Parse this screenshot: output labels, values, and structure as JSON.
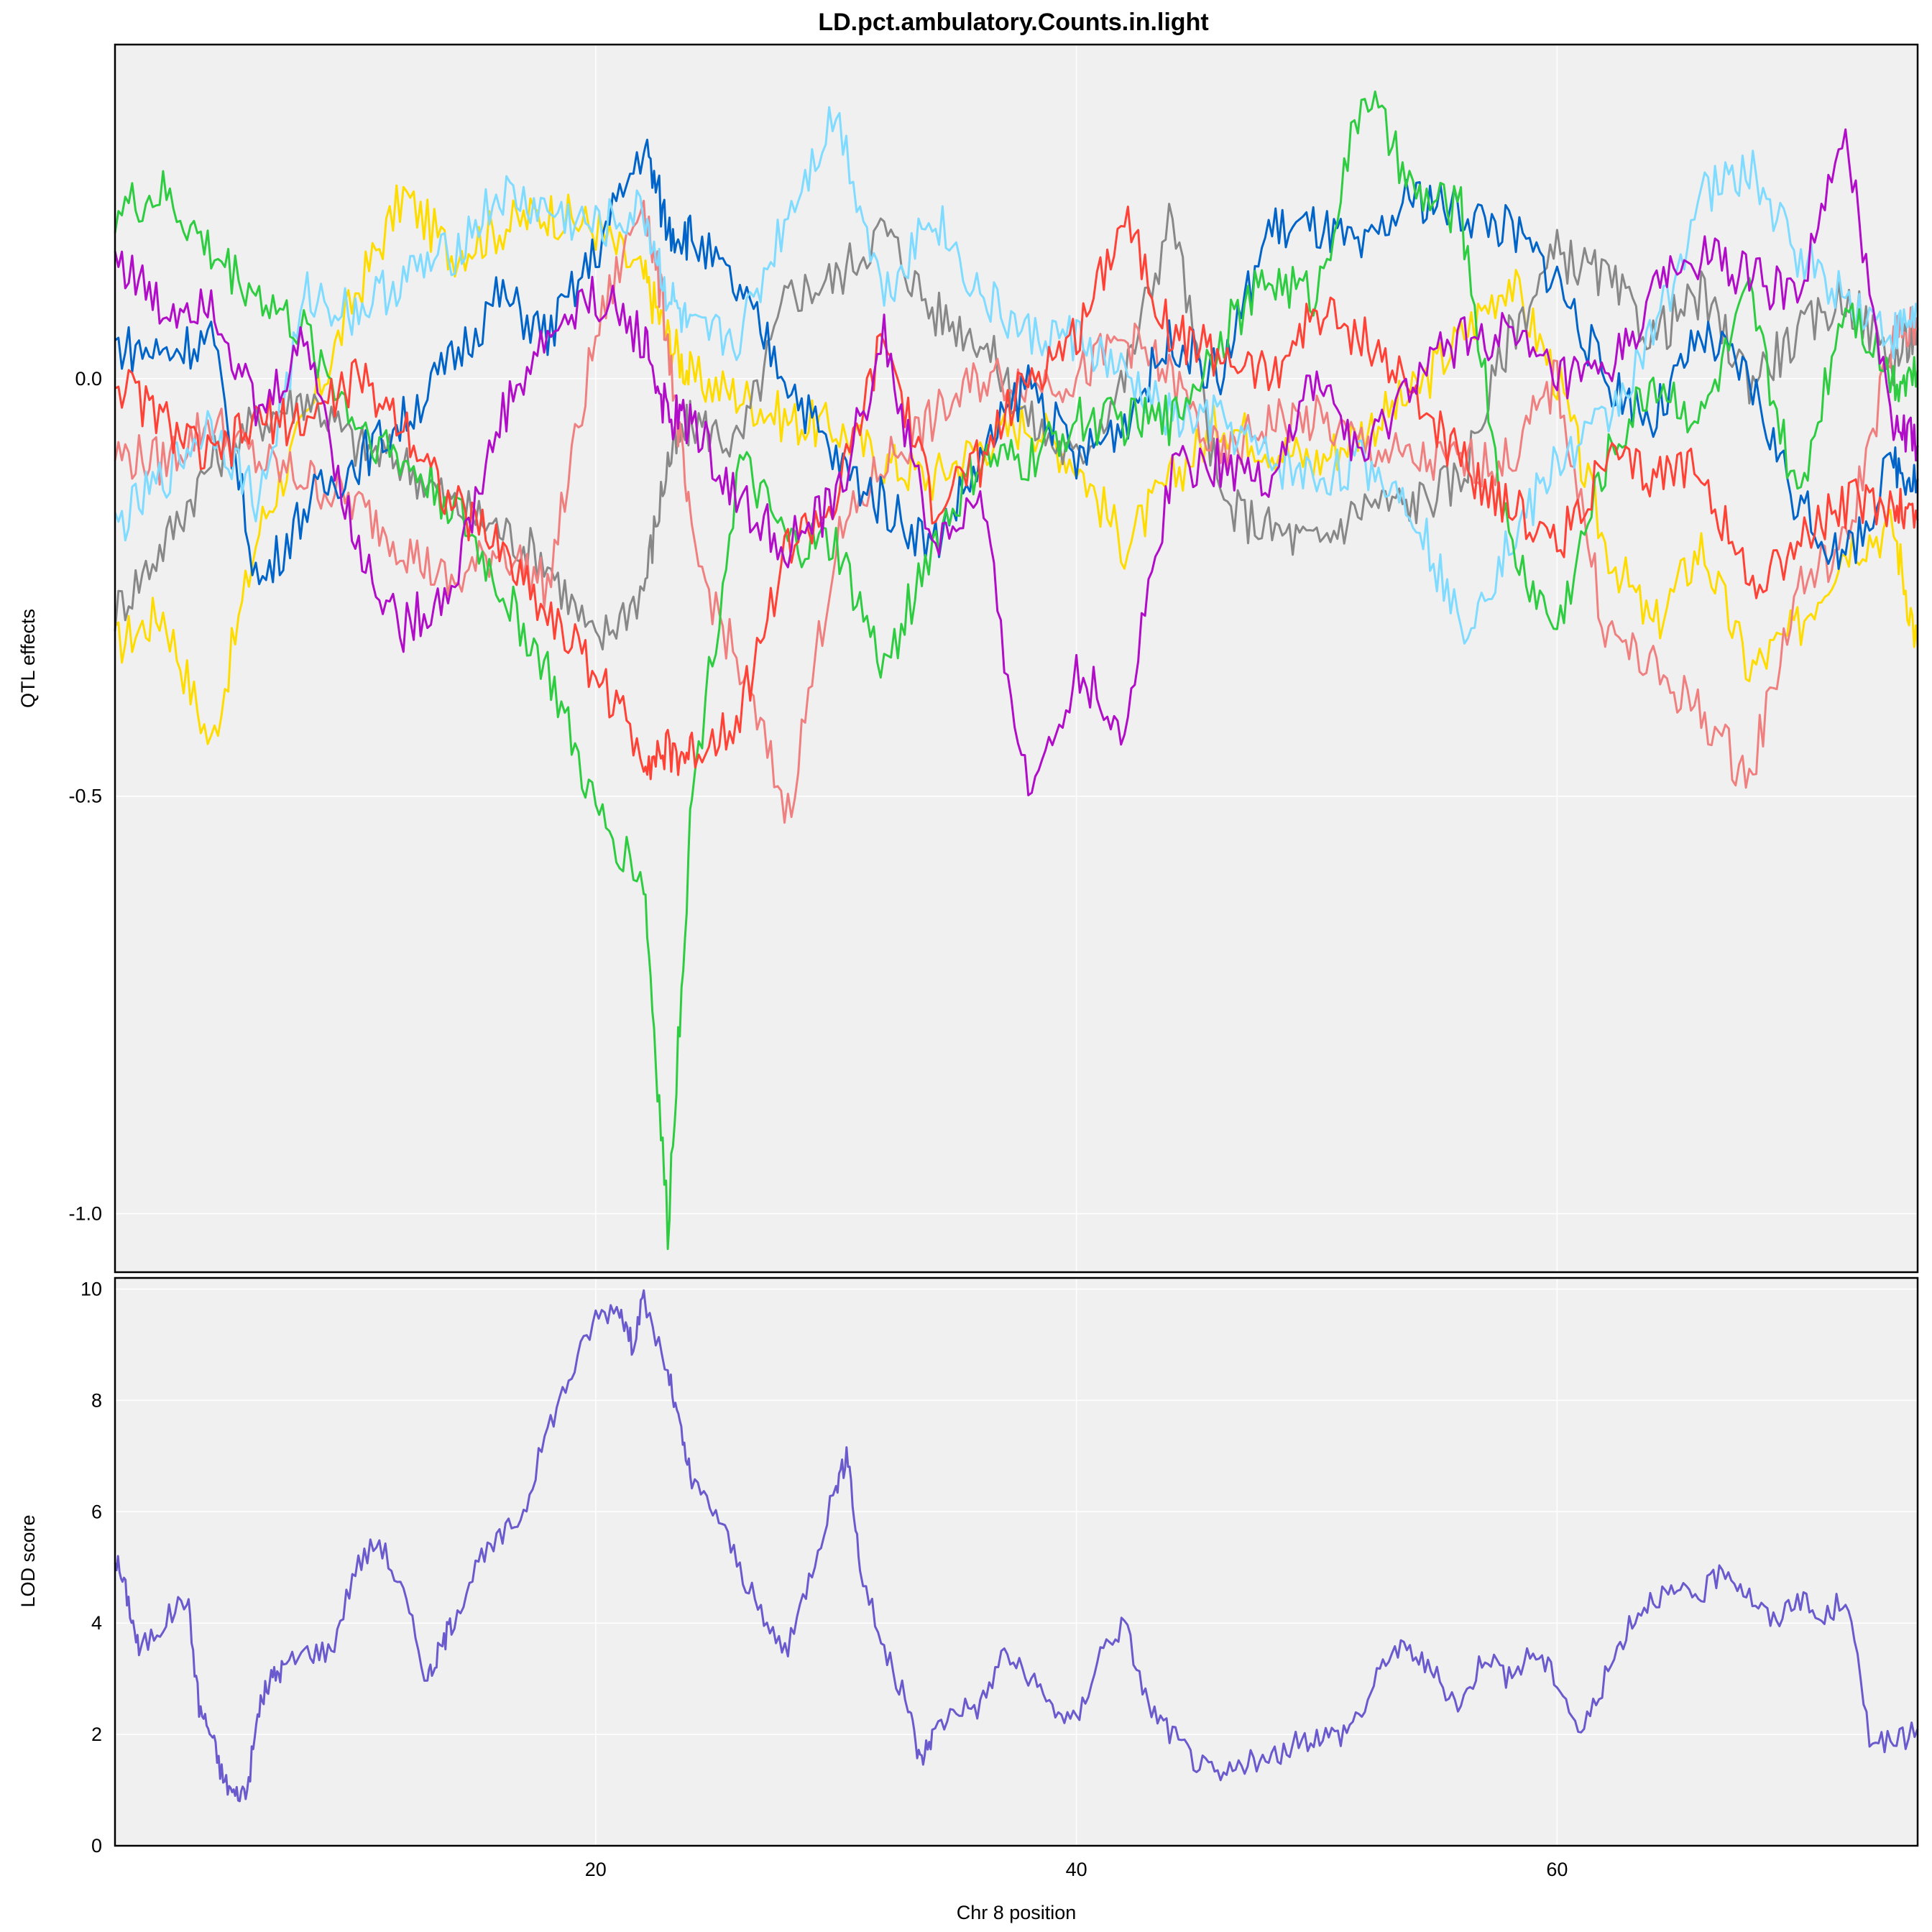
{
  "chart_data": [
    {
      "type": "line",
      "title": "LD.pct.ambulatory.Counts.in.light",
      "ylabel": "QTL effects",
      "xlim": [
        0,
        75
      ],
      "ylim": [
        -1.07,
        0.4
      ],
      "yticks": [
        "-1.0",
        "-0.5",
        "0.0"
      ],
      "ytick_values": [
        -1.0,
        -0.5,
        0.0
      ],
      "background": "#f0f0f0",
      "grid": "white, on",
      "x": [
        0,
        2,
        4,
        6,
        8,
        10,
        12,
        14,
        16,
        18,
        20,
        22,
        23,
        24,
        26,
        28,
        30,
        32,
        34,
        36,
        38,
        40,
        42,
        44,
        46,
        48,
        50,
        52,
        54,
        56,
        58,
        60,
        62,
        64,
        66,
        68,
        70,
        72,
        74,
        75
      ],
      "series": [
        {
          "color": "#FFDC00",
          "values": [
            -0.32,
            -0.28,
            -0.44,
            -0.18,
            -0.05,
            0.1,
            0.22,
            0.15,
            0.18,
            0.2,
            0.18,
            0.12,
            0.05,
            0.0,
            -0.02,
            -0.05,
            -0.06,
            -0.1,
            -0.12,
            -0.08,
            -0.05,
            -0.1,
            -0.2,
            -0.12,
            -0.05,
            -0.08,
            -0.1,
            -0.06,
            -0.02,
            0.05,
            0.12,
            0.0,
            -0.2,
            -0.3,
            -0.2,
            -0.35,
            -0.3,
            -0.2,
            -0.18,
            -0.32
          ]
        },
        {
          "color": "#888888",
          "values": [
            -0.28,
            -0.2,
            -0.1,
            -0.05,
            -0.02,
            -0.08,
            -0.1,
            -0.15,
            -0.18,
            -0.22,
            -0.32,
            -0.25,
            -0.1,
            -0.05,
            -0.08,
            0.1,
            0.12,
            0.18,
            0.08,
            0.05,
            -0.05,
            -0.1,
            0.0,
            0.2,
            -0.15,
            -0.18,
            -0.2,
            -0.15,
            -0.15,
            -0.12,
            0.05,
            0.15,
            0.12,
            0.05,
            0.1,
            0.0,
            0.05,
            0.1,
            0.02,
            0.06
          ]
        },
        {
          "color": "#F08080",
          "values": [
            -0.09,
            -0.1,
            -0.05,
            -0.1,
            -0.12,
            -0.15,
            -0.2,
            -0.25,
            -0.2,
            -0.25,
            0.05,
            0.22,
            0.05,
            -0.2,
            -0.35,
            -0.52,
            -0.2,
            -0.1,
            -0.05,
            0.0,
            0.0,
            0.0,
            0.05,
            0.0,
            -0.1,
            -0.05,
            -0.05,
            -0.08,
            -0.1,
            -0.1,
            -0.1,
            0.0,
            -0.3,
            -0.35,
            -0.4,
            -0.48,
            -0.25,
            -0.2,
            0.05,
            0.06
          ]
        },
        {
          "color": "#0064C9",
          "values": [
            0.04,
            0.03,
            0.05,
            -0.25,
            -0.15,
            -0.1,
            -0.05,
            0.02,
            0.1,
            0.05,
            0.15,
            0.28,
            0.18,
            0.17,
            0.1,
            0.0,
            -0.1,
            -0.15,
            -0.2,
            -0.1,
            0.0,
            -0.1,
            -0.05,
            0.05,
            0.0,
            0.18,
            0.18,
            0.15,
            0.22,
            0.2,
            0.18,
            0.12,
            0.0,
            -0.05,
            0.05,
            0.0,
            -0.15,
            -0.22,
            -0.1,
            -0.12
          ]
        },
        {
          "color": "#7FDBFF",
          "values": [
            -0.18,
            -0.12,
            -0.05,
            -0.15,
            0.1,
            0.08,
            0.12,
            0.15,
            0.22,
            0.2,
            0.18,
            0.2,
            0.1,
            0.05,
            0.05,
            0.2,
            0.32,
            0.1,
            0.2,
            0.1,
            0.05,
            0.05,
            0.0,
            -0.05,
            -0.05,
            -0.1,
            -0.12,
            -0.1,
            -0.15,
            -0.3,
            -0.2,
            -0.1,
            -0.05,
            0.05,
            0.22,
            0.25,
            0.15,
            0.1,
            0.05,
            0.08
          ]
        },
        {
          "color": "#2ECC40",
          "values": [
            0.2,
            0.22,
            0.15,
            0.1,
            0.05,
            -0.05,
            -0.1,
            -0.15,
            -0.25,
            -0.35,
            -0.52,
            -0.6,
            -1.02,
            -0.5,
            -0.1,
            -0.2,
            -0.2,
            -0.35,
            -0.2,
            -0.1,
            -0.1,
            -0.05,
            -0.05,
            -0.05,
            0.05,
            0.12,
            0.1,
            0.35,
            0.22,
            0.2,
            -0.2,
            -0.3,
            -0.1,
            0.0,
            -0.05,
            0.1,
            -0.15,
            0.1,
            0.0,
            0.01
          ]
        },
        {
          "color": "#FF4136",
          "values": [
            0.0,
            -0.05,
            -0.1,
            -0.05,
            -0.05,
            0.0,
            -0.05,
            -0.15,
            -0.2,
            -0.28,
            -0.35,
            -0.45,
            -0.45,
            -0.45,
            -0.4,
            -0.2,
            -0.15,
            0.05,
            -0.15,
            -0.1,
            0.0,
            0.05,
            0.2,
            0.05,
            0.03,
            0.0,
            0.08,
            0.05,
            -0.02,
            -0.1,
            -0.15,
            -0.2,
            -0.1,
            -0.12,
            -0.1,
            -0.25,
            -0.2,
            -0.15,
            -0.15,
            -0.17
          ]
        },
        {
          "color": "#B10DC9",
          "values": [
            0.15,
            0.08,
            0.1,
            -0.05,
            0.05,
            -0.2,
            -0.3,
            -0.25,
            -0.05,
            0.05,
            0.1,
            0.05,
            -0.05,
            -0.05,
            -0.15,
            -0.2,
            -0.15,
            0.05,
            -0.2,
            -0.15,
            -0.5,
            -0.35,
            -0.42,
            -0.1,
            -0.1,
            -0.12,
            0.0,
            -0.1,
            0.0,
            0.05,
            0.05,
            0.0,
            0.0,
            0.1,
            0.15,
            0.12,
            0.1,
            0.28,
            -0.05,
            -0.08
          ]
        }
      ]
    },
    {
      "type": "line",
      "xlabel": "Chr 8 position",
      "ylabel": "LOD score",
      "xlim": [
        0,
        75
      ],
      "ylim": [
        0,
        10.2
      ],
      "xticks": [
        "20",
        "40",
        "60"
      ],
      "xtick_values": [
        20,
        40,
        60
      ],
      "yticks": [
        "0",
        "2",
        "4",
        "6",
        "8",
        "10"
      ],
      "ytick_values": [
        0,
        2,
        4,
        6,
        8,
        10
      ],
      "background": "#f0f0f0",
      "grid": "white, on",
      "series": [
        {
          "color": "#6A5ACD",
          "x": [
            0,
            0.5,
            1,
            2,
            3,
            3.5,
            4,
            4.5,
            5,
            5.5,
            6,
            6.5,
            7,
            8,
            9,
            10,
            11,
            12,
            13,
            13.5,
            14,
            15,
            16,
            17,
            18,
            19,
            20,
            21,
            21.5,
            22,
            23,
            23.5,
            24,
            25,
            26,
            27,
            28,
            29,
            30,
            30.5,
            31,
            32,
            33,
            33.5,
            34,
            35,
            36,
            37,
            38,
            39,
            40,
            41,
            42,
            43,
            44,
            45,
            46,
            47,
            48,
            49,
            50,
            51,
            52,
            53,
            54,
            55,
            56,
            57,
            58,
            59,
            60,
            61,
            62,
            63,
            64,
            65,
            66,
            67,
            68,
            69,
            70,
            71,
            72,
            73,
            74,
            75
          ],
          "values": [
            5.2,
            4.5,
            3.5,
            4.0,
            4.5,
            2.5,
            2.0,
            1.2,
            0.9,
            1.0,
            2.5,
            3.0,
            3.2,
            3.5,
            3.5,
            5.0,
            5.5,
            4.5,
            3.0,
            3.5,
            4.0,
            5.0,
            5.5,
            6.0,
            7.5,
            8.5,
            9.5,
            9.7,
            9.0,
            9.8,
            8.5,
            7.5,
            6.5,
            6.0,
            5.0,
            4.0,
            3.5,
            5.0,
            6.5,
            7.0,
            5.0,
            3.5,
            2.5,
            1.5,
            2.0,
            2.5,
            2.5,
            3.5,
            3.0,
            2.5,
            2.2,
            3.5,
            4.0,
            2.5,
            2.0,
            1.5,
            1.2,
            1.5,
            1.5,
            1.8,
            2.0,
            2.0,
            2.5,
            3.5,
            3.5,
            3.0,
            2.5,
            3.5,
            3.0,
            3.5,
            3.0,
            2.0,
            3.0,
            4.0,
            4.5,
            4.5,
            4.5,
            5.0,
            4.5,
            4.0,
            4.5,
            4.0,
            4.5,
            2.0,
            1.8,
            2.1
          ]
        }
      ]
    }
  ]
}
